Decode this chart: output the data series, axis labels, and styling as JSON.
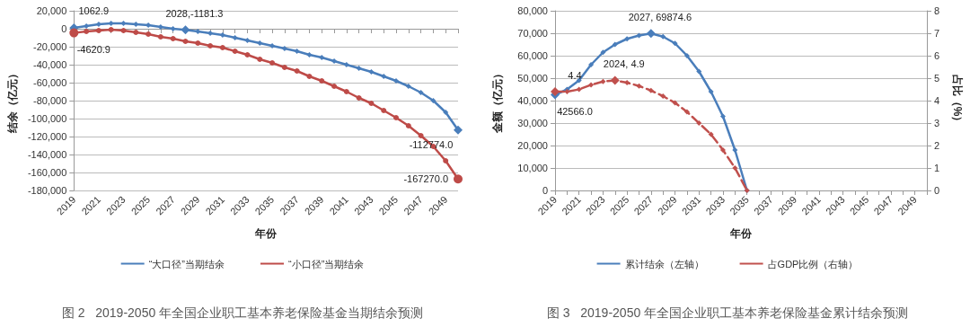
{
  "chart_data": [
    {
      "type": "line",
      "title": "图 2   2019-2050 年全国企业职工基本养老保险基金当期结余预测",
      "xlabel": "年份",
      "ylabel": "结余（亿元）",
      "categories": [
        "2019",
        null,
        "2021",
        null,
        "2023",
        null,
        "2025",
        null,
        "2027",
        null,
        "2029",
        null,
        "2031",
        null,
        "2033",
        null,
        "2035",
        null,
        "2037",
        null,
        "2039",
        null,
        "2041",
        null,
        "2043",
        null,
        "2045",
        null,
        "2047",
        null,
        "2049",
        null
      ],
      "series": [
        {
          "name": "“大口径”当期结余",
          "color": "#4a7ebb",
          "marker": "diamond",
          "values": [
            1062.9,
            3000,
            5000,
            6000,
            6000,
            5000,
            4000,
            2000,
            0,
            -1181.3,
            -3000,
            -5000,
            -7000,
            -10000,
            -13000,
            -16000,
            -19000,
            -22000,
            -25000,
            -29000,
            -32000,
            -36000,
            -40000,
            -44000,
            -48000,
            -53000,
            -58000,
            -64000,
            -71000,
            -80000,
            -93000,
            -112774.0
          ],
          "value_labels": [
            "1062.9",
            null,
            null,
            null,
            null,
            null,
            null,
            null,
            null,
            "2028,-1181.3",
            null,
            null,
            null,
            null,
            null,
            null,
            null,
            null,
            null,
            null,
            null,
            null,
            null,
            null,
            null,
            null,
            null,
            null,
            null,
            null,
            null,
            "-112774.0"
          ]
        },
        {
          "name": "“小口径”当期结余",
          "color": "#be4b48",
          "marker": "circle",
          "values": [
            -4620.9,
            -3000,
            -2000,
            -1000,
            -2000,
            -4000,
            -6000,
            -9000,
            -11000,
            -14000,
            -16000,
            -19000,
            -21000,
            -25000,
            -29000,
            -34000,
            -38000,
            -43000,
            -47000,
            -53000,
            -58000,
            -64000,
            -70000,
            -77000,
            -83000,
            -91000,
            -99000,
            -108000,
            -119000,
            -131000,
            -147000,
            -167270.0
          ],
          "value_labels": [
            "-4620.9",
            null,
            null,
            null,
            null,
            null,
            null,
            null,
            null,
            null,
            null,
            null,
            null,
            null,
            null,
            null,
            null,
            null,
            null,
            null,
            null,
            null,
            null,
            null,
            null,
            null,
            null,
            null,
            null,
            null,
            null,
            "-167270.0"
          ]
        }
      ],
      "ylim": [
        -180000,
        20000
      ],
      "yticks": [
        {
          "value": -180000,
          "label": "-180,000"
        },
        {
          "value": -160000,
          "label": "-160,000"
        },
        {
          "value": -140000,
          "label": "-140,000"
        },
        {
          "value": -120000,
          "label": "-120,000"
        },
        {
          "value": -100000,
          "label": "-100,000"
        },
        {
          "value": -80000,
          "label": "-80,000"
        },
        {
          "value": -60000,
          "label": "-60,000"
        },
        {
          "value": -40000,
          "label": "-40,000"
        },
        {
          "value": -20000,
          "label": "-20,000"
        },
        {
          "value": 0,
          "label": "0"
        },
        {
          "value": 20000,
          "label": "20,000"
        }
      ],
      "grid": "y",
      "legend": "bottom"
    },
    {
      "type": "line",
      "title": "图 3   2019-2050 年全国企业职工基本养老保险基金累计结余预测",
      "xlabel": "年份",
      "ylabel": "金额（亿元）",
      "y2label": "占比（%）",
      "categories": [
        "2019",
        null,
        "2021",
        null,
        "2023",
        null,
        "2025",
        null,
        "2027",
        null,
        "2029",
        null,
        "2031",
        null,
        "2033",
        null,
        "2035",
        null,
        "2037",
        null,
        "2039",
        null,
        "2041",
        null,
        "2043",
        null,
        "2045",
        null,
        "2047",
        null,
        "2049",
        null
      ],
      "series": [
        {
          "name": "累计结余（左轴）",
          "color": "#4a7ebb",
          "marker": "diamond",
          "line_style": "solid",
          "values": [
            42566.0,
            45000,
            49000,
            56000,
            61500,
            65000,
            67500,
            69000,
            69874.6,
            68500,
            65500,
            60000,
            53000,
            44000,
            33000,
            18000,
            0,
            null,
            null,
            null,
            null,
            null,
            null,
            null,
            null,
            null,
            null,
            null,
            null,
            null,
            null,
            null
          ],
          "value_labels": [
            "42566.0",
            null,
            null,
            null,
            null,
            null,
            null,
            null,
            "2027, 69874.6",
            null,
            null,
            null,
            null,
            null,
            null,
            null,
            null,
            null,
            null,
            null,
            null,
            null,
            null,
            null,
            null,
            null,
            null,
            null,
            null,
            null,
            null,
            null
          ]
        },
        {
          "name": "占GDP比例（右轴）",
          "color": "#c0504d",
          "marker": "diamond",
          "line_style": "dashed",
          "axis": "y2",
          "values": [
            4.4,
            4.4,
            4.5,
            4.7,
            4.85,
            4.9,
            4.8,
            4.65,
            4.45,
            4.2,
            3.9,
            3.5,
            3.0,
            2.5,
            1.8,
            1.0,
            0,
            null,
            null,
            null,
            null,
            null,
            null,
            null,
            null,
            null,
            null,
            null,
            null,
            null,
            null,
            null
          ],
          "value_labels": [
            "4.4",
            null,
            null,
            null,
            null,
            "2024, 4.9",
            null,
            null,
            null,
            null,
            null,
            null,
            null,
            null,
            null,
            null,
            null,
            null,
            null,
            null,
            null,
            null,
            null,
            null,
            null,
            null,
            null,
            null,
            null,
            null,
            null,
            null
          ]
        }
      ],
      "ylim": [
        0,
        80000
      ],
      "yticks": [
        0,
        {
          "value": 10000,
          "label": "10,000"
        },
        {
          "value": 20000,
          "label": "20,000"
        },
        {
          "value": 30000,
          "label": "30,000"
        },
        {
          "value": 40000,
          "label": "40,000"
        },
        {
          "value": 50000,
          "label": "50,000"
        },
        {
          "value": 60000,
          "label": "60,000"
        },
        {
          "value": 70000,
          "label": "70,000"
        },
        {
          "value": 80000,
          "label": "80,000"
        }
      ],
      "y2lim": [
        0,
        8
      ],
      "y2ticks": [
        0,
        1,
        2,
        3,
        4,
        5,
        6,
        7,
        8
      ],
      "grid": "y",
      "legend": "bottom"
    }
  ]
}
